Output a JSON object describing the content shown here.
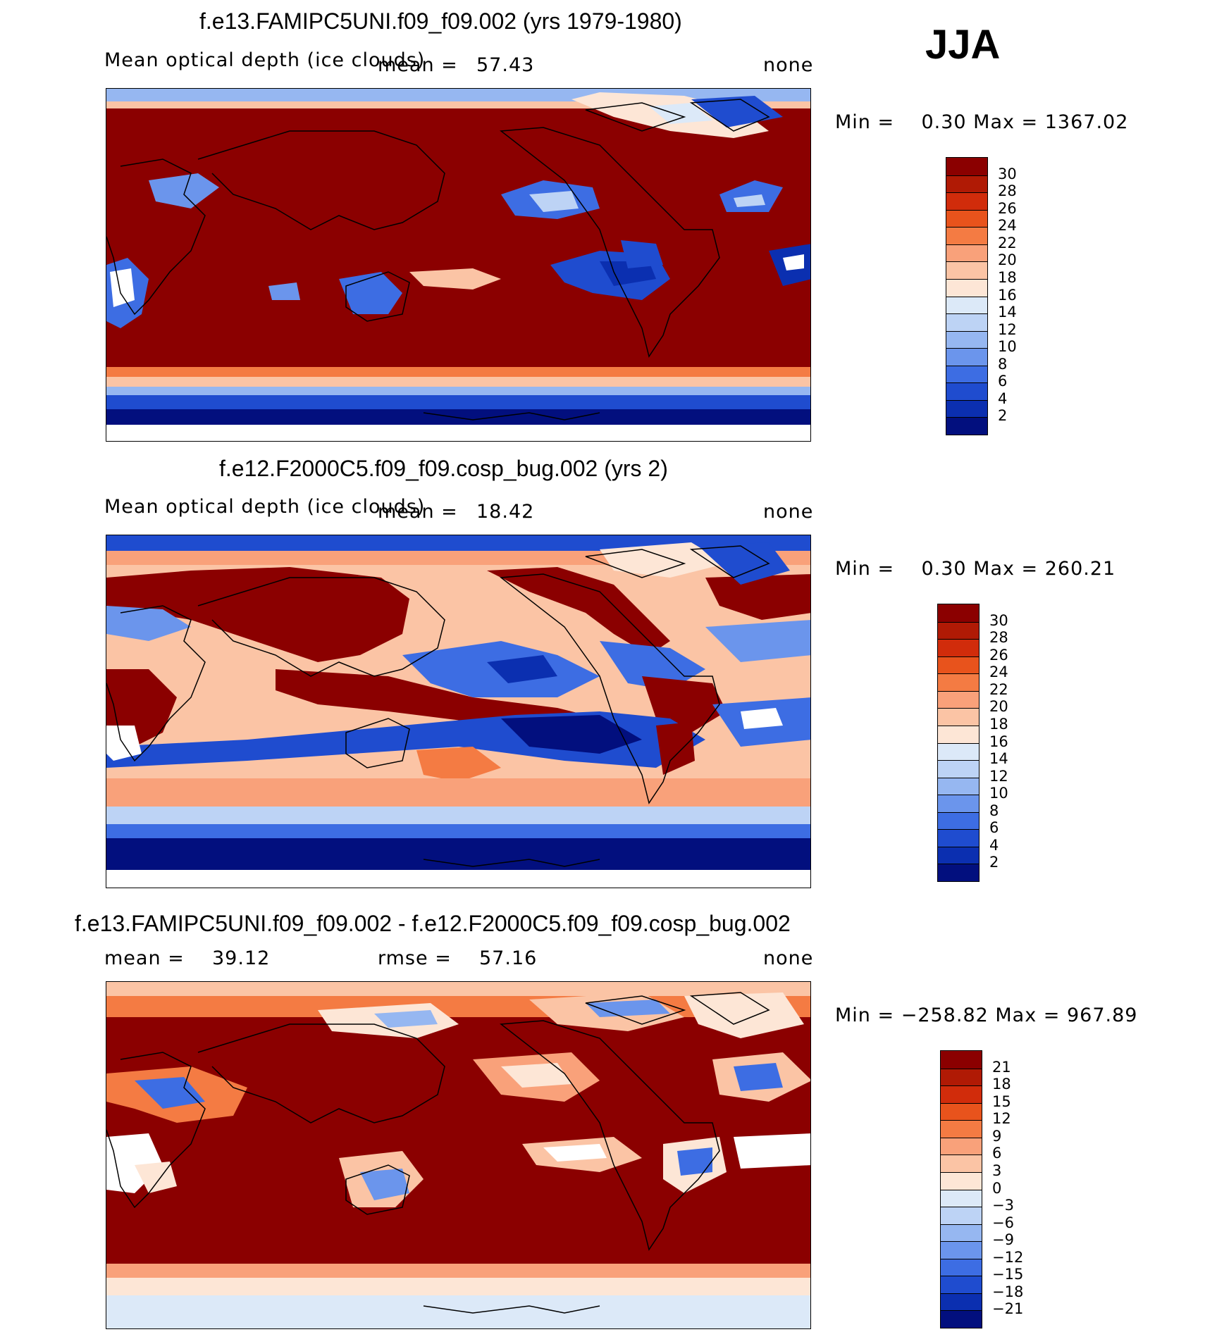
{
  "season": "JJA",
  "panels": [
    {
      "title": "f.e13.FAMIPC5UNI.f09_f09.002 (yrs 1979-1980)",
      "left_label": "Mean optical depth (ice clouds)",
      "mean_label": "mean =",
      "mean_value": "57.43",
      "units": "none",
      "minmax": "Min =    0.30 Max = 1367.02",
      "ticks": [
        "30",
        "28",
        "26",
        "24",
        "22",
        "20",
        "18",
        "16",
        "14",
        "12",
        "10",
        "8",
        "6",
        "4",
        "2"
      ],
      "palette": "seq"
    },
    {
      "title": "f.e12.F2000C5.f09_f09.cosp_bug.002 (yrs 2)",
      "left_label": "Mean optical depth (ice clouds)",
      "mean_label": "mean =",
      "mean_value": "18.42",
      "units": "none",
      "minmax": "Min =    0.30 Max = 260.21",
      "ticks": [
        "30",
        "28",
        "26",
        "24",
        "22",
        "20",
        "18",
        "16",
        "14",
        "12",
        "10",
        "8",
        "6",
        "4",
        "2"
      ],
      "palette": "seq"
    },
    {
      "title": "f.e13.FAMIPC5UNI.f09_f09.002 - f.e12.F2000C5.f09_f09.cosp_bug.002",
      "left_label": "mean =",
      "left_value": "39.12",
      "rmse_label": "rmse =",
      "rmse_value": "57.16",
      "units": "none",
      "minmax": "Min = −258.82 Max = 967.89",
      "ticks": [
        "21",
        "18",
        "15",
        "12",
        "9",
        "6",
        "3",
        "0",
        "−3",
        "−6",
        "−9",
        "−12",
        "−15",
        "−18",
        "−21"
      ],
      "palette": "div"
    }
  ],
  "colors": {
    "seq": [
      "#8b0000",
      "#b01a05",
      "#d12c0b",
      "#e8531c",
      "#f47b43",
      "#f9a17a",
      "#fbc4a5",
      "#fde6d6",
      "#dce9f8",
      "#bdd3f5",
      "#96b7f1",
      "#6b95ec",
      "#3d6de3",
      "#1f4ccf",
      "#0b2fb0",
      "#020f7e"
    ],
    "div": [
      "#8b0000",
      "#b01a05",
      "#d12c0b",
      "#e8531c",
      "#f47b43",
      "#f9a17a",
      "#fbc4a5",
      "#fde6d6",
      "#dce9f8",
      "#bdd3f5",
      "#96b7f1",
      "#6b95ec",
      "#3d6de3",
      "#1f4ccf",
      "#0b2fb0",
      "#020f7e"
    ]
  }
}
